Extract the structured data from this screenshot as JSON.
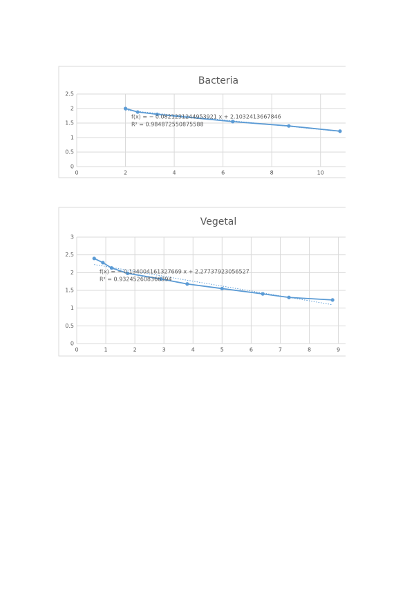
{
  "chart_data": [
    {
      "type": "scatter",
      "title": "Bacteria",
      "x": [
        2,
        2.5,
        3.3,
        6.4,
        8.7,
        10.8
      ],
      "series": [
        {
          "color": "#5b9bd5",
          "values": [
            2.0,
            1.88,
            1.8,
            1.55,
            1.4,
            1.22
          ]
        }
      ],
      "trendline": {
        "equation": "f(x) = − 0.0821231244953921 x + 2.1032413667846",
        "r2": "R² = 0.984872550875588"
      },
      "xlim": [
        0,
        11
      ],
      "ylim": [
        0,
        2.5
      ],
      "xticks": [
        0,
        2,
        4,
        6,
        8,
        10
      ],
      "yticks": [
        0,
        0.5,
        1,
        1.5,
        2,
        2.5
      ],
      "grid": true
    },
    {
      "type": "scatter",
      "title": "Vegetal",
      "x": [
        0.6,
        0.9,
        1.2,
        1.75,
        2.9,
        3.8,
        5.0,
        6.4,
        7.3,
        8.8
      ],
      "series": [
        {
          "color": "#5b9bd5",
          "values": [
            2.4,
            2.28,
            2.13,
            1.98,
            1.82,
            1.68,
            1.55,
            1.4,
            1.3,
            1.23
          ]
        }
      ],
      "trendline": {
        "equation": "f(x) = − 0.134004161327669 x + 2.27737923056527",
        "r2": "R² = 0.932452608366394"
      },
      "xlim": [
        0,
        9.2
      ],
      "ylim": [
        0,
        3
      ],
      "xticks": [
        0,
        1,
        2,
        3,
        4,
        5,
        6,
        7,
        8,
        9
      ],
      "yticks": [
        0,
        0.5,
        1,
        1.5,
        2,
        2.5,
        3
      ],
      "grid": true
    }
  ]
}
